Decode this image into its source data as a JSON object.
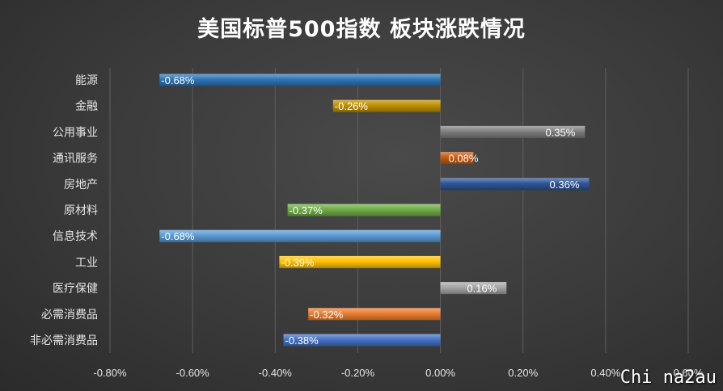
{
  "chart_data": {
    "type": "bar",
    "orientation": "horizontal",
    "title": "美国标普500指数 板块涨跌情况",
    "categories": [
      "能源",
      "金融",
      "公用事业",
      "通讯服务",
      "房地产",
      "原材料",
      "信息技术",
      "工业",
      "医疗保健",
      "必需消费品",
      "非必需消费品"
    ],
    "values": [
      -0.68,
      -0.26,
      0.35,
      0.08,
      0.36,
      -0.37,
      -0.68,
      -0.39,
      0.16,
      -0.32,
      -0.38
    ],
    "data_labels": [
      "-0.68%",
      "-0.26%",
      "0.35%",
      "0.08%",
      "0.36%",
      "-0.37%",
      "-0.68%",
      "-0.39%",
      "0.16%",
      "-0.32%",
      "-0.38%"
    ],
    "bar_colors": [
      "#2e75b6",
      "#bf9000",
      "#7f7f7f",
      "#c55a11",
      "#2f5597",
      "#70ad47",
      "#5b9bd5",
      "#ffc000",
      "#a5a5a5",
      "#ed7d31",
      "#4472c4"
    ],
    "xlim": [
      -0.8,
      0.6
    ],
    "xticks": [
      -0.8,
      -0.6,
      -0.4,
      -0.2,
      0.0,
      0.2,
      0.4,
      0.6
    ],
    "xtick_labels": [
      "-0.80%",
      "-0.60%",
      "-0.40%",
      "-0.20%",
      "0.00%",
      "0.20%",
      "0.40%",
      "0.60%"
    ],
    "xlabel": "",
    "ylabel": "",
    "grid": "vertical",
    "legend": "none"
  },
  "watermark": "Chi na2au"
}
